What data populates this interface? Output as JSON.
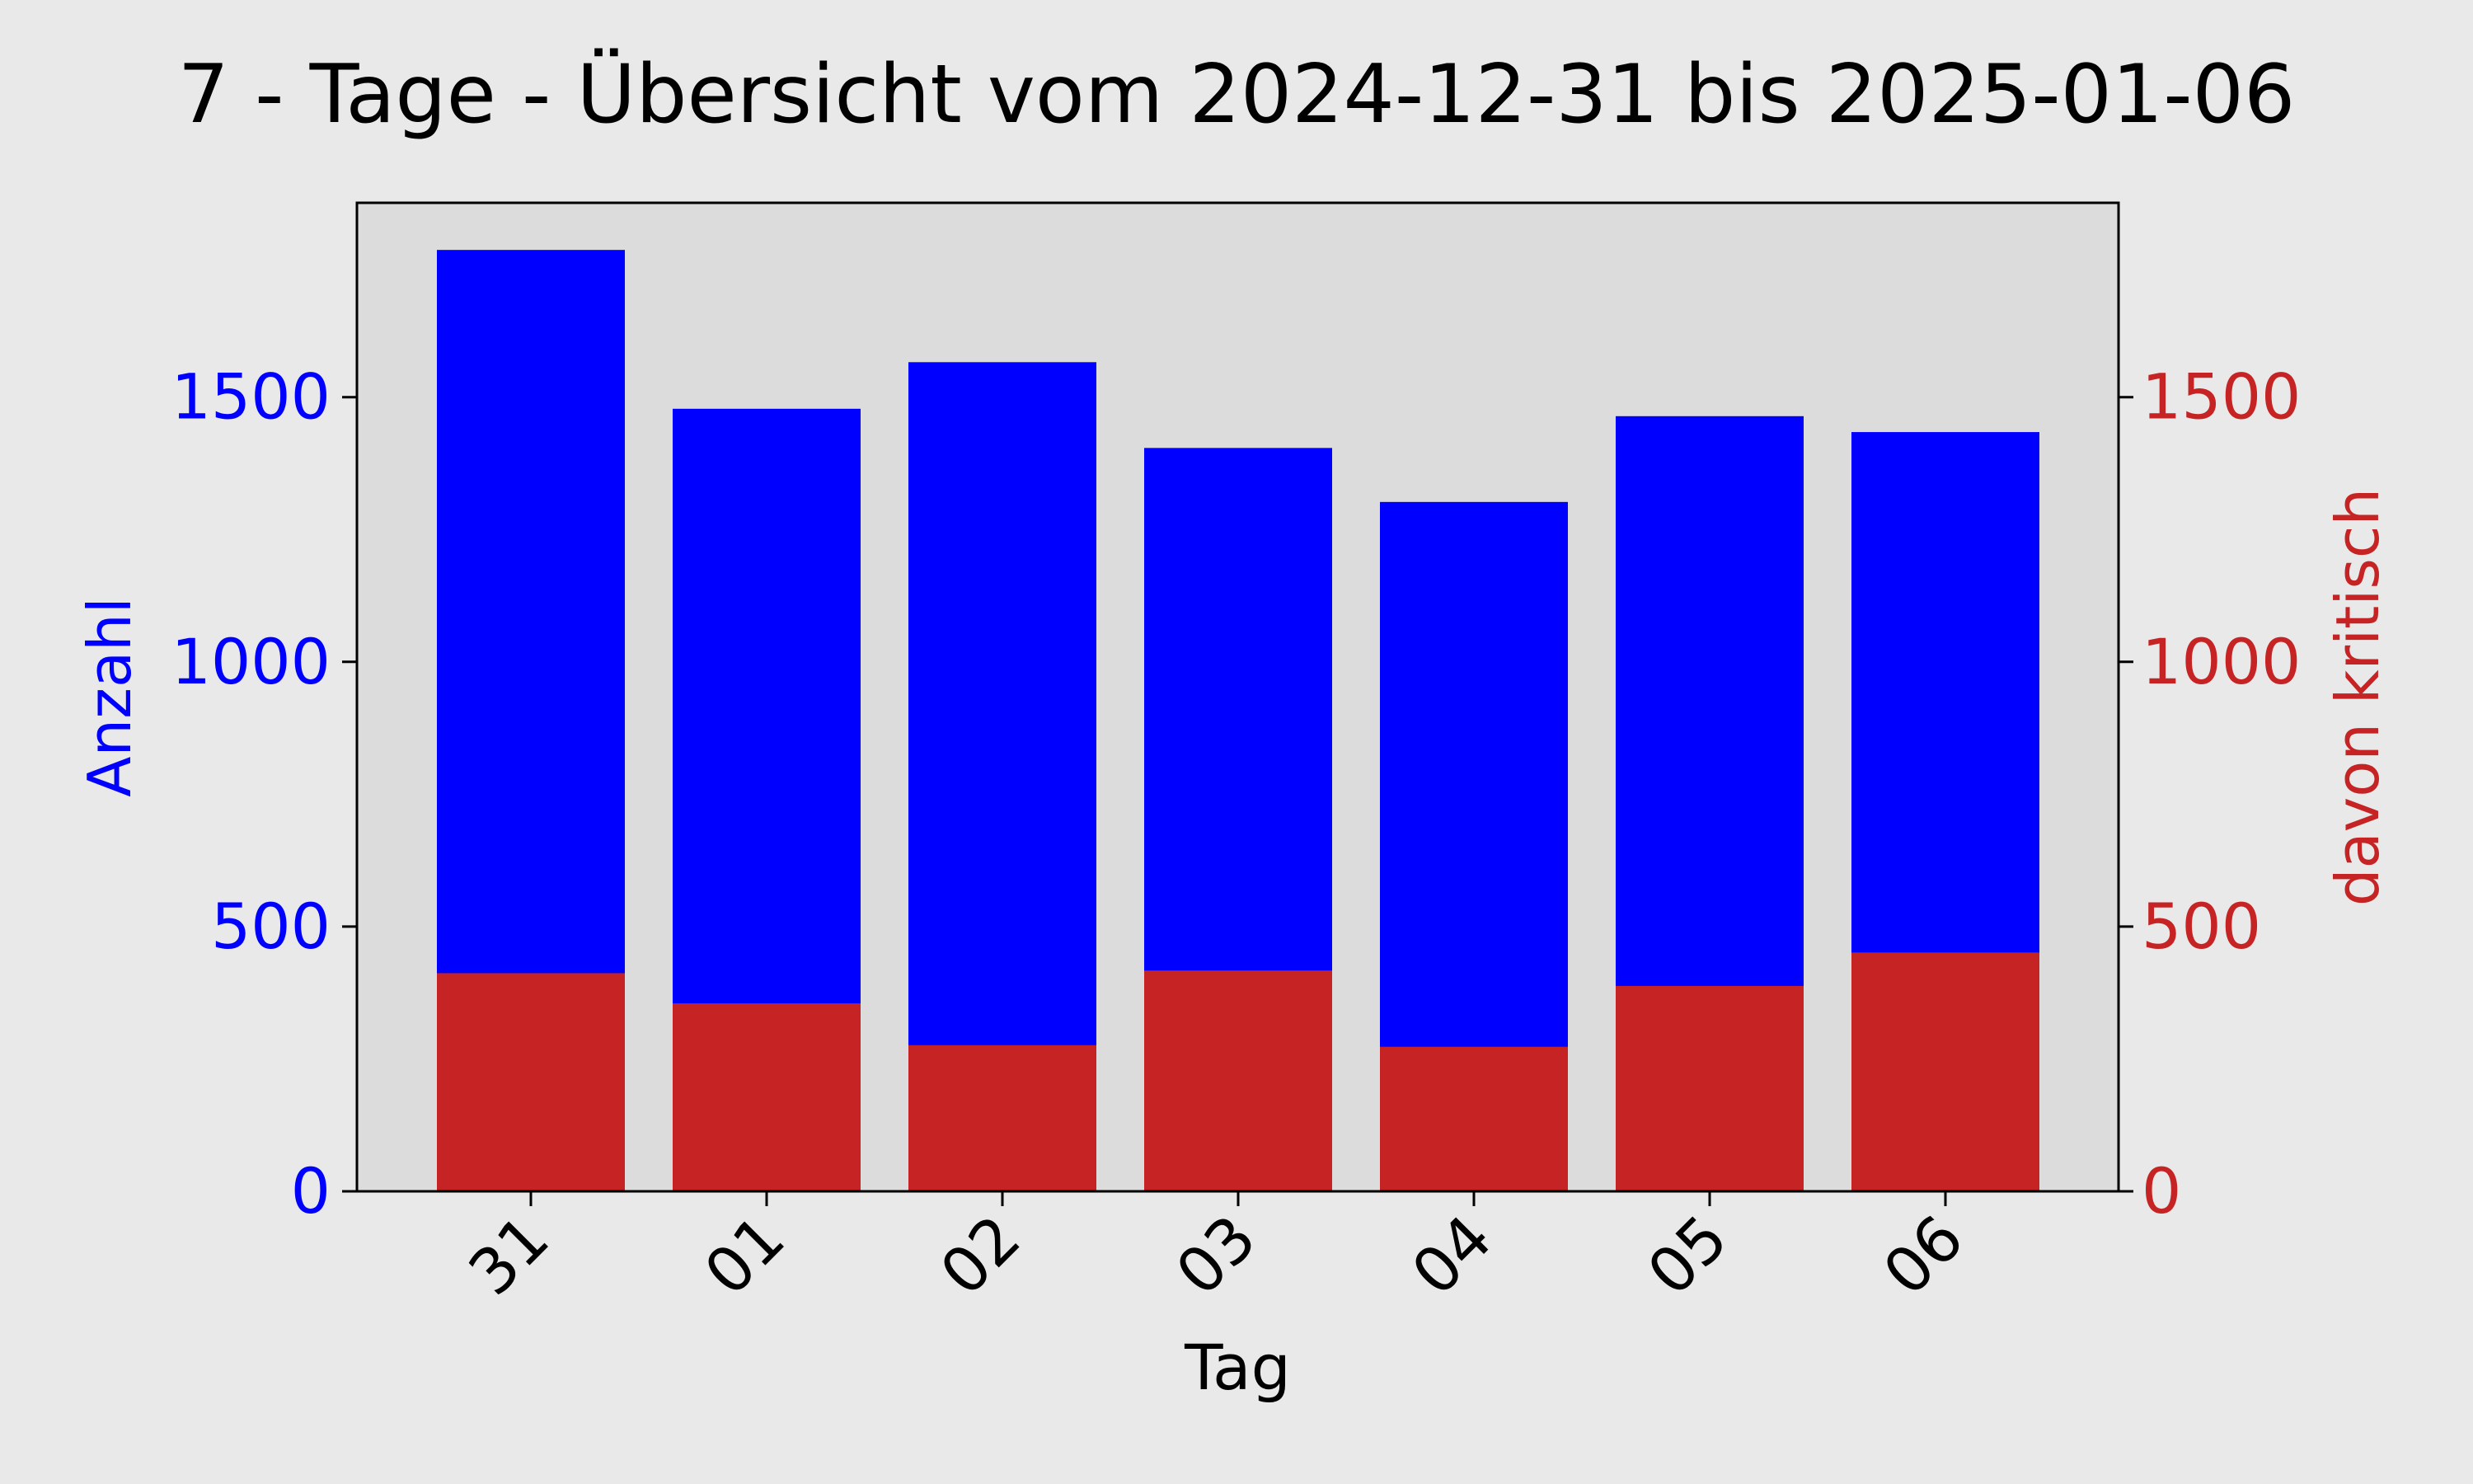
{
  "chart_data": {
    "type": "bar",
    "title": "7 - Tage - Übersicht vom 2024-12-31 bis 2025-01-06",
    "xlabel": "Tag",
    "ylabel_left": "Anzahl",
    "ylabel_right": "davon kritisch",
    "categories": [
      "31",
      "01",
      "02",
      "03",
      "04",
      "05",
      "06"
    ],
    "series": [
      {
        "name": "Anzahl",
        "axis": "left",
        "color": "#0000ff",
        "values": [
          1778,
          1478,
          1566,
          1404,
          1302,
          1464,
          1434
        ]
      },
      {
        "name": "davon kritisch",
        "axis": "right",
        "color": "#c62424",
        "values": [
          412,
          355,
          276,
          417,
          273,
          388,
          451
        ]
      }
    ],
    "ylim_left": [
      0,
      1867
    ],
    "ylim_right": [
      0,
      1867
    ],
    "yticks": [
      0,
      500,
      1000,
      1500
    ],
    "colors": {
      "figure_background": "#e9e9e9",
      "axes_background": "#dcdcdc",
      "left_axis": "#0000ff",
      "right_axis": "#c62424",
      "text": "#000000"
    },
    "grid": false,
    "legend": "none"
  }
}
